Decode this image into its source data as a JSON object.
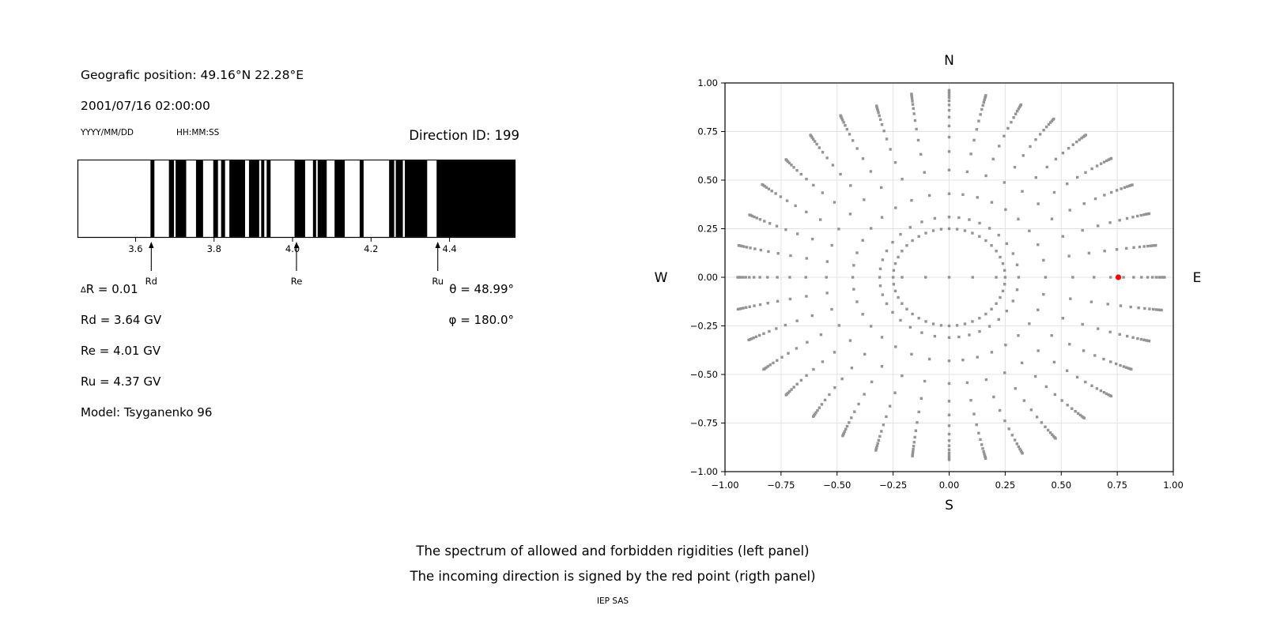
{
  "header": {
    "position_line": "Geografic position: 49.16°N 22.28°E",
    "datetime_line": "2001/07/16 02:00:00",
    "date_format_label": "YYYY/MM/DD",
    "time_format_label": "HH:MM:SS",
    "direction_id": "Direction ID: 199"
  },
  "info": {
    "delta_symbol": "∆",
    "delta_rest": "R = 0.01",
    "rd": "Rd = 3.64 GV",
    "re": "Re = 4.01 GV",
    "ru": "Ru = 4.37 GV",
    "model": "Model: Tsyganenko 96",
    "theta": "θ = 48.99°",
    "phi": "φ = 180.0°"
  },
  "caption": {
    "line1": "The spectrum of allowed and forbidden rigidities (left panel)",
    "line2": "The incoming direction is signed by the red point (rigth panel)",
    "credit": "IEP SAS"
  },
  "chart_data": [
    {
      "type": "bar",
      "subtype": "penumbra-barcode",
      "title": "",
      "xlabel": "",
      "xlim": [
        3.453,
        4.567
      ],
      "xticks": {
        "values": [
          3.6,
          3.8,
          4.0,
          4.2,
          4.4
        ],
        "labels": [
          "3.6",
          "3.8",
          "4.0",
          "4.2",
          "4.4"
        ]
      },
      "bar_color": "#000000",
      "background": "#ffffff",
      "allowed_bands_gv": [
        [
          3.638,
          3.648
        ],
        [
          3.685,
          3.698
        ],
        [
          3.702,
          3.729
        ],
        [
          3.754,
          3.772
        ],
        [
          3.798,
          3.81
        ],
        [
          3.818,
          3.828
        ],
        [
          3.839,
          3.879
        ],
        [
          3.889,
          3.915
        ],
        [
          3.92,
          3.928
        ],
        [
          3.934,
          3.944
        ],
        [
          4.005,
          4.032
        ],
        [
          4.052,
          4.06
        ],
        [
          4.064,
          4.087
        ],
        [
          4.107,
          4.133
        ],
        [
          4.171,
          4.181
        ],
        [
          4.246,
          4.259
        ],
        [
          4.263,
          4.281
        ],
        [
          4.286,
          4.343
        ],
        [
          4.367,
          4.567
        ]
      ],
      "markers": [
        {
          "label": "Rd",
          "value_gv": 3.64
        },
        {
          "label": "Re",
          "value_gv": 4.01
        },
        {
          "label": "Ru",
          "value_gv": 4.37
        }
      ]
    },
    {
      "type": "scatter",
      "title": "",
      "xlim": [
        -1,
        1
      ],
      "ylim": [
        -1,
        1
      ],
      "grid": true,
      "ticks": {
        "values": [
          -1,
          -0.75,
          -0.5,
          -0.25,
          0,
          0.25,
          0.5,
          0.75,
          1
        ],
        "labels": [
          "−1.00",
          "−0.75",
          "−0.50",
          "−0.25",
          "0.00",
          "0.25",
          "0.50",
          "0.75",
          "1.00"
        ]
      },
      "compass": {
        "top": "N",
        "bottom": "S",
        "left": "W",
        "right": "E"
      },
      "dot_color": "#8c8c8c",
      "trajectories": {
        "count": 36,
        "angle_step_deg": 10,
        "r_inner": 0.31,
        "first_step_radius": 0.43,
        "r_outer_base": 0.955,
        "r_outer_jitter": 0.03,
        "points": 15,
        "convergence_ratio": 0.78,
        "bend_max_deg": 4.5,
        "extra_inner_radii_on_axes": [
          0.105,
          0.21
        ]
      },
      "inner_circle": {
        "radius": 0.25,
        "dot_count": 44
      },
      "center_dot": {
        "x": 0,
        "y": 0
      },
      "red_point": {
        "x": 0.75,
        "y": 0,
        "color": "#ff0000"
      }
    }
  ]
}
